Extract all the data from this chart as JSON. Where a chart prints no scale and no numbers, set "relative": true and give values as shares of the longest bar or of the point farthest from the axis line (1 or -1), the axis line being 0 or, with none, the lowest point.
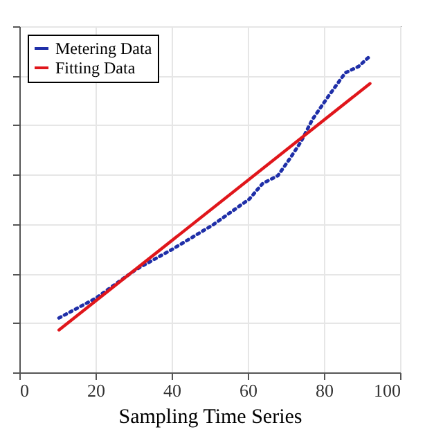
{
  "chart_data": {
    "type": "line",
    "xlabel": "Sampling Time Series",
    "relative": true,
    "xlim": [
      0,
      100
    ],
    "xticks": [
      0,
      20,
      40,
      60,
      80,
      100
    ],
    "grid": true,
    "legend": "top left",
    "series": [
      {
        "name": "Metering Data",
        "color": "#1f2fa8",
        "line_style": "dotted",
        "x": [
          10.4,
          20,
          30.6,
          40,
          50.8,
          60.4,
          63.9,
          67.9,
          71,
          74,
          77,
          81,
          85.6,
          89.1,
          92.1
        ],
        "values": [
          0.172,
          0.234,
          0.325,
          0.388,
          0.466,
          0.548,
          0.597,
          0.622,
          0.675,
          0.73,
          0.8,
          0.87,
          0.947,
          0.967,
          1.0
        ]
      },
      {
        "name": "Fitting Data",
        "color": "#e0161b",
        "line_style": "solid",
        "x": [
          10.4,
          92.1
        ],
        "values": [
          0.134,
          0.913
        ]
      }
    ]
  }
}
